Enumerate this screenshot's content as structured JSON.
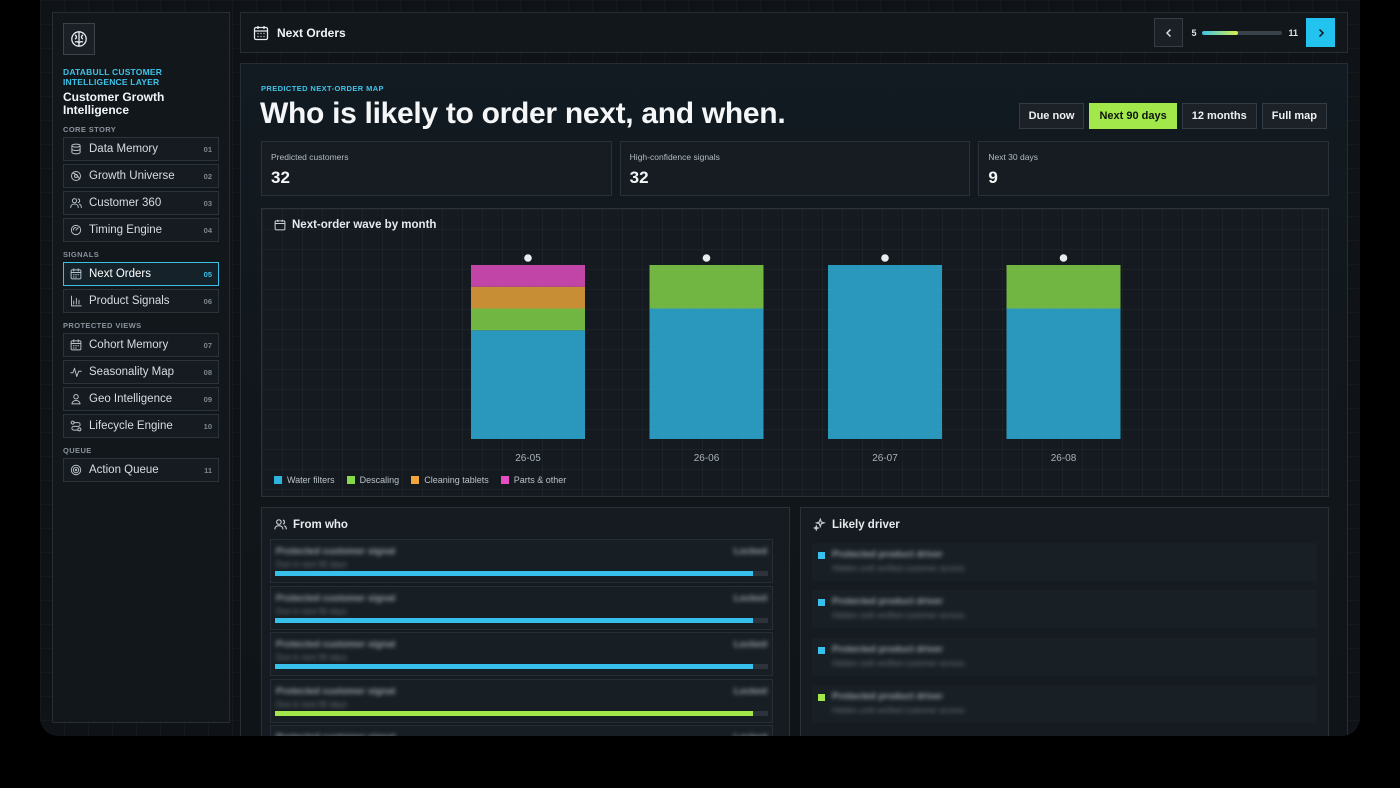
{
  "sidebar": {
    "brand": "DATABULL CUSTOMER INTELLIGENCE LAYER",
    "app_title": "Customer Growth Intelligence",
    "sections": [
      {
        "label": "CORE STORY",
        "items": [
          {
            "label": "Data Memory",
            "num": "01",
            "icon": "database-icon"
          },
          {
            "label": "Growth Universe",
            "num": "02",
            "icon": "orbit-icon"
          },
          {
            "label": "Customer 360",
            "num": "03",
            "icon": "users-icon"
          },
          {
            "label": "Timing Engine",
            "num": "04",
            "icon": "gauge-icon"
          }
        ]
      },
      {
        "label": "SIGNALS",
        "items": [
          {
            "label": "Next Orders",
            "num": "05",
            "icon": "calendar-icon",
            "active": true
          },
          {
            "label": "Product Signals",
            "num": "06",
            "icon": "bar-chart-icon"
          }
        ]
      },
      {
        "label": "PROTECTED VIEWS",
        "items": [
          {
            "label": "Cohort Memory",
            "num": "07",
            "icon": "calendar-icon"
          },
          {
            "label": "Seasonality Map",
            "num": "08",
            "icon": "pulse-icon"
          },
          {
            "label": "Geo Intelligence",
            "num": "09",
            "icon": "user-pin-icon"
          },
          {
            "label": "Lifecycle Engine",
            "num": "10",
            "icon": "route-icon"
          }
        ]
      },
      {
        "label": "QUEUE",
        "items": [
          {
            "label": "Action Queue",
            "num": "11",
            "icon": "target-icon"
          }
        ]
      }
    ]
  },
  "topbar": {
    "title": "Next Orders",
    "pager": {
      "current": "5",
      "total": "11",
      "progress": 0.45
    }
  },
  "main": {
    "eyebrow": "PREDICTED NEXT-ORDER MAP",
    "headline": "Who is likely to order next, and when.",
    "ranges": [
      {
        "label": "Due now",
        "active": false
      },
      {
        "label": "Next 90 days",
        "active": true
      },
      {
        "label": "12 months",
        "active": false
      },
      {
        "label": "Full map",
        "active": false
      }
    ],
    "stats": [
      {
        "label": "Predicted customers",
        "value": "32"
      },
      {
        "label": "High-confidence signals",
        "value": "32"
      },
      {
        "label": "Next 30 days",
        "value": "9"
      }
    ]
  },
  "chart_data": {
    "type": "bar",
    "stacked": true,
    "title": "Next-order wave by month",
    "categories": [
      "26-05",
      "26-06",
      "26-07",
      "26-08"
    ],
    "series": [
      {
        "name": "Water filters",
        "color": "#2fb4e0",
        "values": [
          5,
          6,
          8,
          6
        ]
      },
      {
        "name": "Descaling",
        "color": "#86d94a",
        "values": [
          1,
          2,
          0,
          2
        ]
      },
      {
        "name": "Cleaning tablets",
        "color": "#f0a83a",
        "values": [
          1,
          0,
          0,
          0
        ]
      },
      {
        "name": "Parts & other",
        "color": "#e64fc4",
        "values": [
          1,
          0,
          0,
          0
        ]
      }
    ],
    "ylim": [
      0,
      8
    ],
    "grid": true,
    "legend": "bottom-left"
  },
  "from_who": {
    "title": "From who",
    "rows": [
      {
        "name": "Protected customer signal",
        "sub": "Due in next 90 days",
        "status": "Locked",
        "fill": 0.97,
        "color": "#37c0ec"
      },
      {
        "name": "Protected customer signal",
        "sub": "Due in next 90 days",
        "status": "Locked",
        "fill": 0.97,
        "color": "#37c0ec"
      },
      {
        "name": "Protected customer signal",
        "sub": "Due in next 90 days",
        "status": "Locked",
        "fill": 0.97,
        "color": "#37c0ec"
      },
      {
        "name": "Protected customer signal",
        "sub": "Due in next 90 days",
        "status": "Locked",
        "fill": 0.97,
        "color": "#a3e84a"
      },
      {
        "name": "Protected customer signal",
        "sub": "",
        "status": "Locked",
        "fill": 0.97,
        "color": "#37c0ec"
      }
    ]
  },
  "likely_driver": {
    "title": "Likely driver",
    "rows": [
      {
        "name": "Protected product driver",
        "sub": "Hidden until verified customer access",
        "color": "#37c0ec"
      },
      {
        "name": "Protected product driver",
        "sub": "Hidden until verified customer access",
        "color": "#37c0ec"
      },
      {
        "name": "Protected product driver",
        "sub": "Hidden until verified customer access",
        "color": "#37c0ec"
      },
      {
        "name": "Protected product driver",
        "sub": "Hidden until verified customer access",
        "color": "#a3e84a"
      }
    ]
  }
}
